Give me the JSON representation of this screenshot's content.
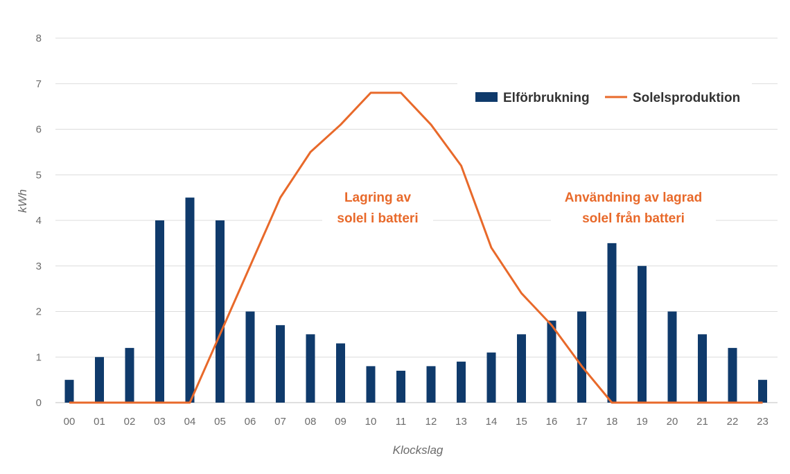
{
  "chart_data": {
    "type": "bar",
    "categories": [
      "00",
      "01",
      "02",
      "03",
      "04",
      "05",
      "06",
      "07",
      "08",
      "09",
      "10",
      "11",
      "12",
      "13",
      "14",
      "15",
      "16",
      "17",
      "18",
      "19",
      "20",
      "21",
      "22",
      "23"
    ],
    "series": [
      {
        "name": "Elförbrukning",
        "type": "bar",
        "color": "#0f3a6b",
        "values": [
          0.5,
          1.0,
          1.2,
          4.0,
          4.5,
          4.0,
          2.0,
          1.7,
          1.5,
          1.3,
          0.8,
          0.7,
          0.8,
          0.9,
          1.1,
          1.5,
          1.8,
          2.0,
          3.5,
          3.0,
          2.0,
          1.5,
          1.2,
          0.5
        ]
      },
      {
        "name": "Solelsproduktion",
        "type": "line",
        "color": "#e8692a",
        "values": [
          0,
          0,
          0,
          0,
          0,
          1.5,
          3.0,
          4.5,
          5.5,
          6.1,
          6.8,
          6.8,
          6.1,
          5.2,
          3.4,
          2.4,
          1.7,
          0.8,
          0,
          0,
          0,
          0,
          0,
          0
        ]
      }
    ],
    "ylabel": "kWh",
    "xlabel": "Klockslag",
    "ylim": [
      0,
      8
    ],
    "yticks": [
      "0",
      "1",
      "2",
      "3",
      "4",
      "5",
      "6",
      "7",
      "8"
    ],
    "grid": true,
    "legend": "top-right",
    "annotations": [
      {
        "lines": [
          "Lagring av",
          "solel i batteri"
        ],
        "color": "#e8692a"
      },
      {
        "lines": [
          "Användning av lagrad",
          "solel från batteri"
        ],
        "color": "#e8692a"
      }
    ]
  }
}
